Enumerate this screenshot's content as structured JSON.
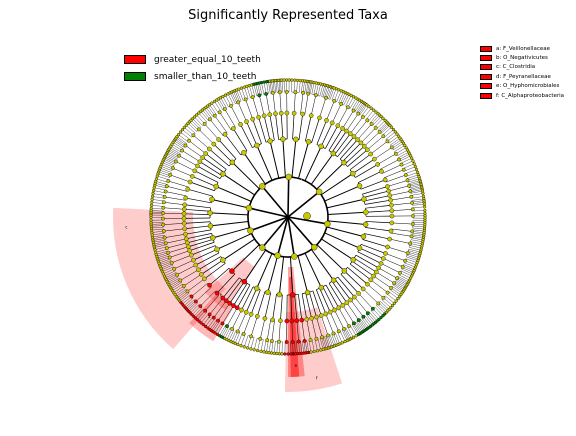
{
  "chart_data": {
    "type": "cladogram",
    "title": "Significantly Represented Taxa",
    "groups": [
      {
        "name": "greater_equal_10_teeth",
        "color": "#ff0000"
      },
      {
        "name": "smaller_than_10_teeth",
        "color": "#008000"
      }
    ],
    "highlighted_taxa": [
      {
        "letter": "a",
        "label": "a: F_Veillonellaceae",
        "group": "greater_equal_10_teeth"
      },
      {
        "letter": "b",
        "label": "b: O_Negativicutes",
        "group": "greater_equal_10_teeth"
      },
      {
        "letter": "c",
        "label": "c: C_Clostridia",
        "group": "greater_equal_10_teeth"
      },
      {
        "letter": "d",
        "label": "d: F_Peyranellaceae",
        "group": "greater_equal_10_teeth"
      },
      {
        "letter": "e",
        "label": "e: O_Hyphomicrobiales",
        "group": "greater_equal_10_teeth"
      },
      {
        "letter": "f",
        "label": "f: C_Alphaproteobacteria",
        "group": "greater_equal_10_teeth"
      }
    ],
    "node_color_default": "#c8c800",
    "highlight_color": "#ff0000"
  }
}
